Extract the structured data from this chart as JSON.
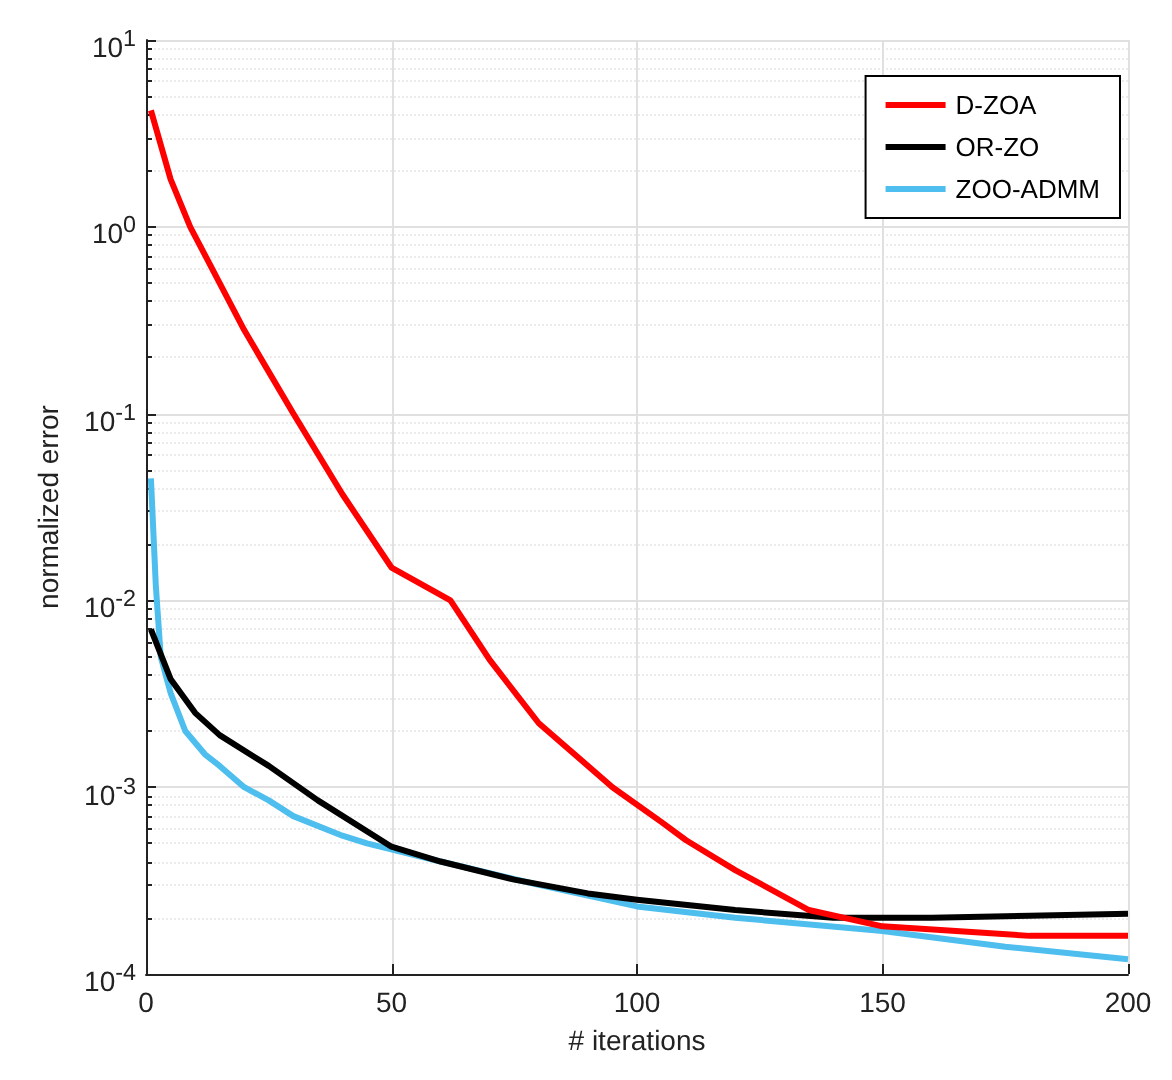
{
  "chart_data": {
    "type": "line",
    "xlabel": "# iterations",
    "ylabel": "normalized error",
    "log": "y",
    "grid": true,
    "legend": "top right",
    "marker": "none",
    "line_style": "solid",
    "xlim": [
      0,
      200
    ],
    "xticks": [
      0,
      50,
      100,
      150,
      200
    ],
    "ylim": [
      0.0001,
      10
    ],
    "yticks": [
      {
        "value": 0.0001,
        "label": "10$^{-4}$"
      },
      {
        "value": 0.001,
        "label": "10$^{-3}$"
      },
      {
        "value": 0.01,
        "label": "10$^{-2}$"
      },
      {
        "value": 0.1,
        "label": "10$^{-1}$"
      },
      {
        "value": 1,
        "label": "10$^{0}$"
      },
      {
        "value": 10,
        "label": "10$^{1}$"
      }
    ],
    "series": [
      {
        "name": "D-ZOA",
        "color": "#ff0000",
        "x": [
          1,
          5,
          9,
          15,
          20,
          30,
          40,
          50,
          62,
          70,
          80,
          95,
          105,
          110,
          120,
          135,
          150,
          165,
          180,
          200
        ],
        "values": [
          4.2,
          1.8,
          1.0,
          0.5,
          0.28,
          0.1,
          0.037,
          0.015,
          0.01,
          0.0048,
          0.0022,
          0.001,
          0.00065,
          0.00052,
          0.00036,
          0.00022,
          0.00018,
          0.00017,
          0.00016,
          0.00016
        ]
      },
      {
        "name": "OR-ZO",
        "color": "#000000",
        "x": [
          1,
          5,
          10,
          15,
          25,
          35,
          50,
          60,
          75,
          90,
          100,
          120,
          140,
          160,
          180,
          200
        ],
        "values": [
          0.007,
          0.0038,
          0.0025,
          0.0019,
          0.0013,
          0.00085,
          0.00048,
          0.0004,
          0.00032,
          0.00027,
          0.00025,
          0.00022,
          0.0002,
          0.0002,
          0.000205,
          0.00021
        ]
      },
      {
        "name": "ZOO-ADMM",
        "color": "#4dbeee",
        "x": [
          1,
          2,
          3,
          5,
          8,
          12,
          15,
          20,
          25,
          30,
          40,
          45,
          60,
          80,
          100,
          120,
          150,
          175,
          200
        ],
        "values": [
          0.045,
          0.012,
          0.005,
          0.0032,
          0.002,
          0.0015,
          0.0013,
          0.001,
          0.00085,
          0.0007,
          0.00055,
          0.0005,
          0.0004,
          0.0003,
          0.00023,
          0.0002,
          0.00017,
          0.00014,
          0.00012
        ]
      }
    ]
  }
}
